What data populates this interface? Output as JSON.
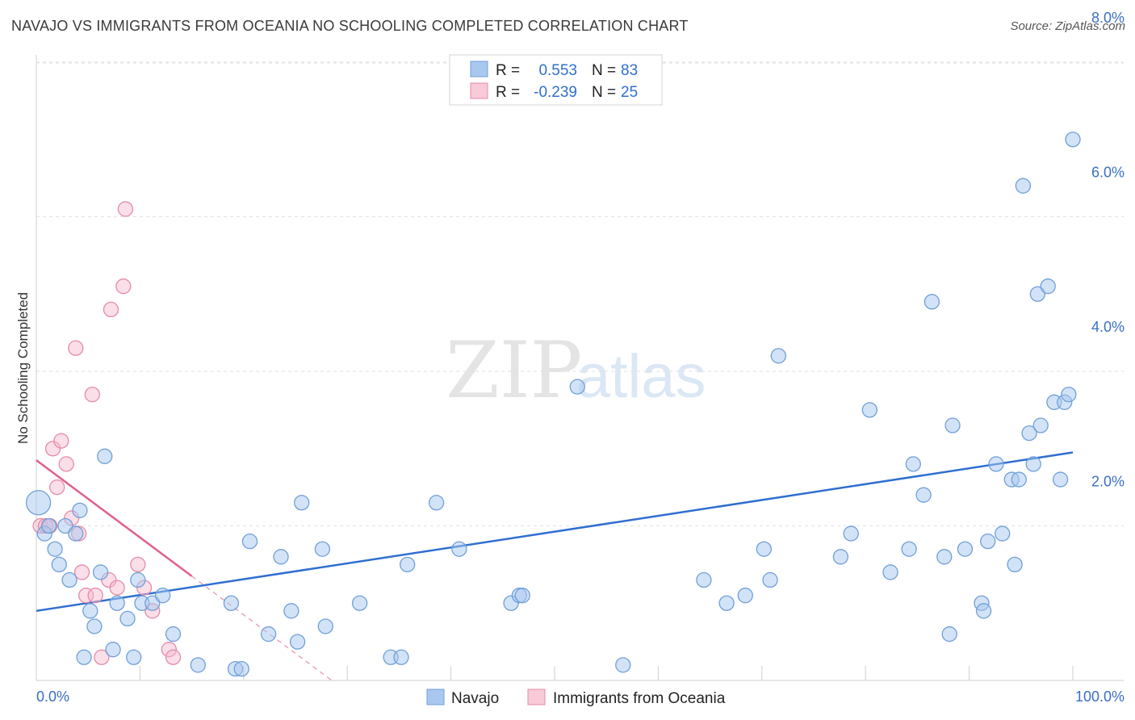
{
  "header": {
    "title": "NAVAJO VS IMMIGRANTS FROM OCEANIA NO SCHOOLING COMPLETED CORRELATION CHART",
    "source": "Source: ZipAtlas.com"
  },
  "watermark": {
    "zip": "ZIP",
    "atlas": "atlas"
  },
  "colors": {
    "navajo_fill": "#a8c8f0",
    "navajo_stroke": "#6f9fd8",
    "navajo_line": "#2f6fd0",
    "oceania_fill": "#f5b8cb",
    "oceania_stroke": "#e68aa8",
    "oceania_line": "#e0608a",
    "tick_label": "#3a6fc4"
  },
  "legend_top": {
    "rows": [
      {
        "r_label": "R =",
        "r_value": "0.553",
        "n_label": "N =",
        "n_value": "83"
      },
      {
        "r_label": "R =",
        "r_value": "-0.239",
        "n_label": "N =",
        "n_value": "25"
      }
    ]
  },
  "legend_bottom": {
    "items": [
      "Navajo",
      "Immigrants from Oceania"
    ]
  },
  "chart_data": {
    "type": "scatter",
    "title": "NAVAJO VS IMMIGRANTS FROM OCEANIA NO SCHOOLING COMPLETED CORRELATION CHART",
    "xlabel": "",
    "ylabel": "No Schooling Completed",
    "xlim": [
      0,
      100
    ],
    "ylim": [
      0,
      8.4
    ],
    "x_tick_labels": [
      "0.0%",
      "100.0%"
    ],
    "y_ticks": [
      2,
      4,
      6,
      8
    ],
    "y_tick_labels": [
      "2.0%",
      "4.0%",
      "6.0%",
      "8.0%"
    ],
    "grid": true,
    "series": [
      {
        "name": "Navajo",
        "points": [
          [
            0.2,
            2.3
          ],
          [
            0.8,
            1.9
          ],
          [
            1.2,
            2.0
          ],
          [
            1.8,
            1.7
          ],
          [
            2.2,
            1.5
          ],
          [
            2.8,
            2.0
          ],
          [
            3.2,
            1.3
          ],
          [
            3.8,
            1.9
          ],
          [
            4.2,
            2.2
          ],
          [
            4.6,
            0.3
          ],
          [
            5.2,
            0.9
          ],
          [
            5.6,
            0.7
          ],
          [
            6.2,
            1.4
          ],
          [
            6.6,
            2.9
          ],
          [
            7.4,
            0.4
          ],
          [
            7.8,
            1.0
          ],
          [
            8.8,
            0.8
          ],
          [
            9.4,
            0.3
          ],
          [
            9.8,
            1.3
          ],
          [
            10.2,
            1.0
          ],
          [
            11.2,
            1.0
          ],
          [
            12.2,
            1.1
          ],
          [
            13.2,
            0.6
          ],
          [
            15.6,
            0.2
          ],
          [
            18.8,
            1.0
          ],
          [
            19.2,
            0.15
          ],
          [
            19.8,
            0.15
          ],
          [
            20.6,
            1.8
          ],
          [
            22.4,
            0.6
          ],
          [
            23.6,
            1.6
          ],
          [
            24.6,
            0.9
          ],
          [
            25.2,
            0.5
          ],
          [
            25.6,
            2.3
          ],
          [
            27.6,
            1.7
          ],
          [
            27.9,
            0.7
          ],
          [
            31.2,
            1.0
          ],
          [
            34.2,
            0.3
          ],
          [
            35.2,
            0.3
          ],
          [
            35.8,
            1.5
          ],
          [
            38.6,
            2.3
          ],
          [
            40.8,
            1.7
          ],
          [
            45.8,
            1.0
          ],
          [
            46.6,
            1.1
          ],
          [
            46.9,
            1.1
          ],
          [
            52.2,
            3.8
          ],
          [
            56.6,
            0.2
          ],
          [
            64.4,
            1.3
          ],
          [
            66.6,
            1.0
          ],
          [
            68.4,
            1.1
          ],
          [
            70.2,
            1.7
          ],
          [
            70.8,
            1.3
          ],
          [
            71.6,
            4.2
          ],
          [
            77.6,
            1.6
          ],
          [
            78.6,
            1.9
          ],
          [
            80.4,
            3.5
          ],
          [
            82.4,
            1.4
          ],
          [
            84.2,
            1.7
          ],
          [
            84.6,
            2.8
          ],
          [
            85.6,
            2.4
          ],
          [
            86.4,
            4.9
          ],
          [
            87.6,
            1.6
          ],
          [
            88.1,
            0.6
          ],
          [
            88.4,
            3.3
          ],
          [
            89.6,
            1.7
          ],
          [
            91.2,
            1.0
          ],
          [
            91.4,
            0.9
          ],
          [
            91.8,
            1.8
          ],
          [
            92.6,
            2.8
          ],
          [
            93.2,
            1.9
          ],
          [
            94.1,
            2.6
          ],
          [
            94.4,
            1.5
          ],
          [
            94.8,
            2.6
          ],
          [
            95.2,
            6.4
          ],
          [
            95.8,
            3.2
          ],
          [
            96.2,
            2.8
          ],
          [
            96.6,
            5.0
          ],
          [
            96.9,
            3.3
          ],
          [
            97.6,
            5.1
          ],
          [
            98.2,
            3.6
          ],
          [
            98.8,
            2.6
          ],
          [
            99.2,
            3.6
          ],
          [
            99.6,
            3.7
          ],
          [
            100.0,
            7.0
          ]
        ],
        "trend": [
          [
            0,
            0.9
          ],
          [
            100,
            2.95
          ]
        ]
      },
      {
        "name": "Immigrants from Oceania",
        "points": [
          [
            0.4,
            2.0
          ],
          [
            0.9,
            2.0
          ],
          [
            1.3,
            2.0
          ],
          [
            1.6,
            3.0
          ],
          [
            2.0,
            2.5
          ],
          [
            2.4,
            3.1
          ],
          [
            2.9,
            2.8
          ],
          [
            3.4,
            2.1
          ],
          [
            3.8,
            4.3
          ],
          [
            4.1,
            1.9
          ],
          [
            4.4,
            1.4
          ],
          [
            4.8,
            1.1
          ],
          [
            5.4,
            3.7
          ],
          [
            5.7,
            1.1
          ],
          [
            6.3,
            0.3
          ],
          [
            7.0,
            1.3
          ],
          [
            7.2,
            4.8
          ],
          [
            7.8,
            1.2
          ],
          [
            8.4,
            5.1
          ],
          [
            8.6,
            6.1
          ],
          [
            9.8,
            1.5
          ],
          [
            10.4,
            1.2
          ],
          [
            11.2,
            0.9
          ],
          [
            12.8,
            0.4
          ],
          [
            13.2,
            0.3
          ]
        ],
        "trend": [
          [
            0,
            2.85
          ],
          [
            15,
            1.35
          ]
        ],
        "trend_extension": [
          [
            15,
            1.35
          ],
          [
            28.5,
            0.0
          ]
        ]
      }
    ]
  }
}
